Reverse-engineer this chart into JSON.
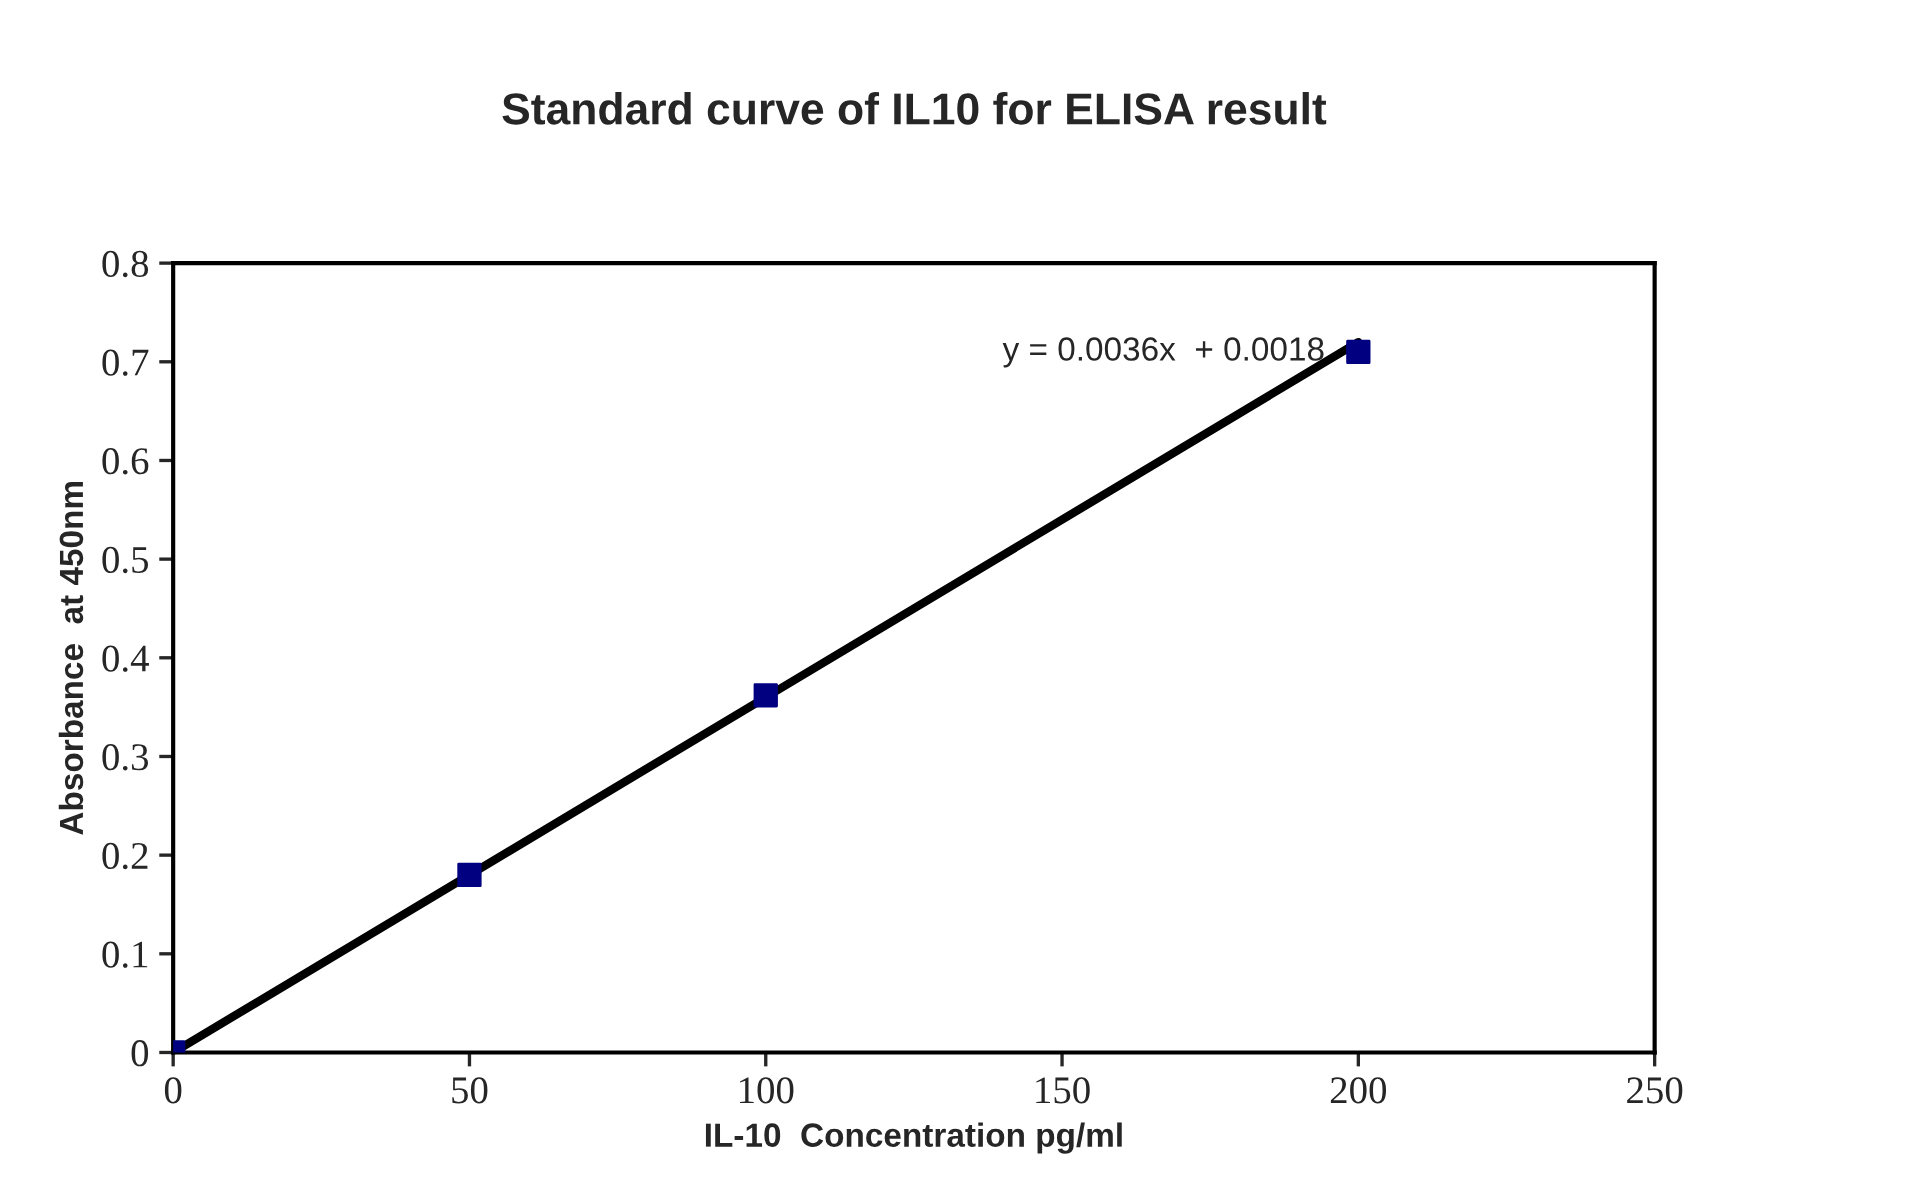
{
  "chart_data": {
    "type": "scatter",
    "title": "Standard curve of IL10 for ELISA result",
    "xlabel": "IL-10  Concentration pg/ml",
    "ylabel": "Absorbance  at 450nm",
    "x": [
      0,
      50,
      100,
      200
    ],
    "series": [
      {
        "color": "#000080",
        "marker": "square",
        "values": [
          0,
          0.18,
          0.362,
          0.71
        ]
      },
      {
        "type": "line",
        "color": "#000000",
        "marker": "none",
        "line_style": "solid",
        "x": [
          0,
          200
        ],
        "values": [
          0,
          0.72
        ]
      }
    ],
    "annotations": [
      {
        "text": "y = 0.0036x  + 0.0018",
        "x": 200,
        "y": 0.71
      }
    ],
    "xlim": [
      0,
      250
    ],
    "xticks": [
      0,
      50,
      100,
      150,
      200,
      250
    ],
    "ylim": [
      0,
      0.8
    ],
    "yticks": [
      0,
      0.1,
      0.2,
      0.3,
      0.4,
      0.5,
      0.6,
      0.7,
      0.8
    ],
    "grid": false,
    "legend": false
  }
}
